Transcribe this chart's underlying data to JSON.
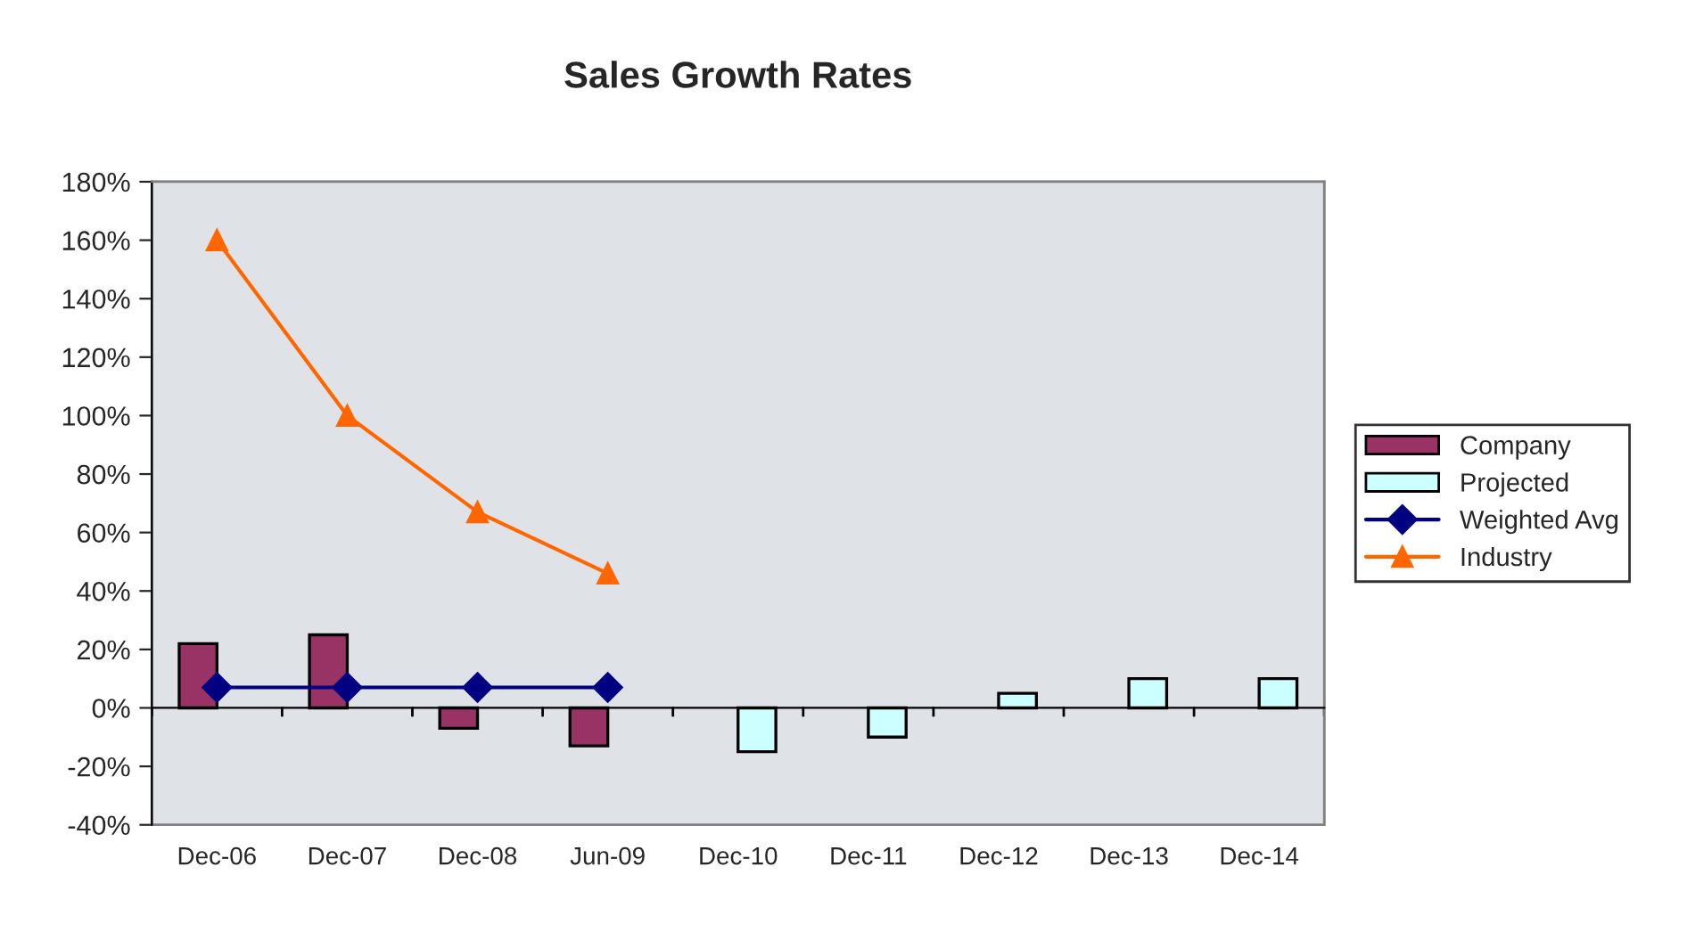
{
  "chart_data": {
    "type": "bar",
    "title": "Sales Growth Rates",
    "categories": [
      "Dec-06",
      "Dec-07",
      "Dec-08",
      "Jun-09",
      "Dec-10",
      "Dec-11",
      "Dec-12",
      "Dec-13",
      "Dec-14"
    ],
    "series": [
      {
        "name": "Company",
        "color": "#993366",
        "values": [
          22,
          25,
          -7,
          -13,
          null,
          null,
          null,
          null,
          null
        ]
      },
      {
        "name": "Projected",
        "color": "#ccffff",
        "values": [
          null,
          null,
          null,
          null,
          -15,
          -10,
          5,
          10,
          10
        ]
      },
      {
        "name": "Weighted Avg",
        "type": "line",
        "color": "#000080",
        "marker": "diamond",
        "values": [
          7,
          7,
          7,
          7,
          null,
          null,
          null,
          null,
          null
        ]
      },
      {
        "name": "Industry",
        "type": "line",
        "color": "#ff6600",
        "marker": "triangle",
        "values": [
          160,
          100,
          67,
          46,
          null,
          null,
          null,
          null,
          null
        ]
      }
    ],
    "ylim": [
      -40,
      180
    ],
    "yticks": [
      {
        "value": -40,
        "label": "-40%"
      },
      {
        "value": -20,
        "label": "-20%"
      },
      {
        "value": 0,
        "label": "0%"
      },
      {
        "value": 20,
        "label": "20%"
      },
      {
        "value": 40,
        "label": "40%"
      },
      {
        "value": 60,
        "label": "60%"
      },
      {
        "value": 80,
        "label": "80%"
      },
      {
        "value": 100,
        "label": "100%"
      },
      {
        "value": 120,
        "label": "120%"
      },
      {
        "value": 140,
        "label": "140%"
      },
      {
        "value": 160,
        "label": "160%"
      },
      {
        "value": 180,
        "label": "180%"
      }
    ],
    "legend": "right"
  }
}
